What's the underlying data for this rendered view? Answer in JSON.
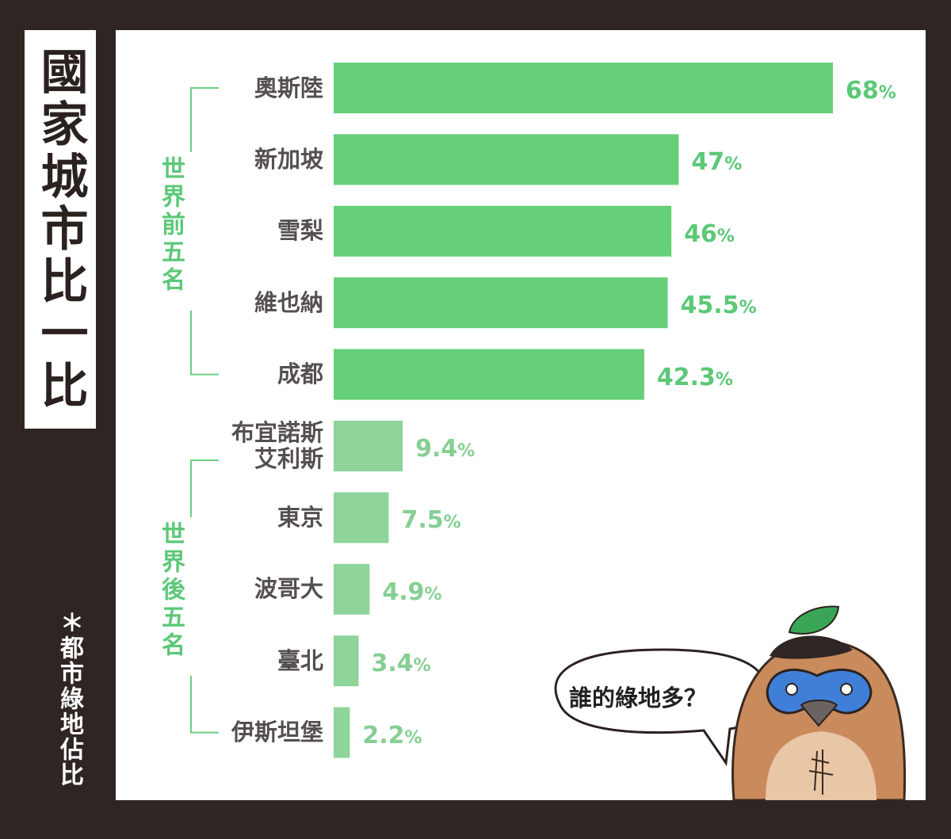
{
  "title": "國家城市比一比",
  "note": "＊都市綠地佔比",
  "speech_bubble": "誰的綠地多？",
  "colors": {
    "top_bar": "#66cf7a",
    "bottom_bar": "#8fd49b",
    "top_text": "#5cc878",
    "bottom_text": "#86cf94",
    "bracket": "#6ccf82"
  },
  "chart_data": {
    "type": "bar",
    "orientation": "horizontal",
    "categories": [
      "奧斯陸",
      "新加坡",
      "雪梨",
      "維也納",
      "成都",
      "布宜諾斯艾利斯",
      "東京",
      "波哥大",
      "臺北",
      "伊斯坦堡"
    ],
    "category_lines": [
      [
        "奧斯陸"
      ],
      [
        "新加坡"
      ],
      [
        "雪梨"
      ],
      [
        "維也納"
      ],
      [
        "成都"
      ],
      [
        "布宜諾斯",
        "艾利斯"
      ],
      [
        "東京"
      ],
      [
        "波哥大"
      ],
      [
        "臺北"
      ],
      [
        "伊斯坦堡"
      ]
    ],
    "values": [
      68,
      47,
      46,
      45.5,
      42.3,
      9.4,
      7.5,
      4.9,
      3.4,
      2.2
    ],
    "value_labels": [
      "68",
      "47",
      "46",
      "45.5",
      "42.3",
      "9.4",
      "7.5",
      "4.9",
      "3.4",
      "2.2"
    ],
    "unit": "%",
    "xlim": [
      0,
      68
    ],
    "grid": false,
    "groups": [
      {
        "label": "世界前五名",
        "start": 0,
        "end": 4
      },
      {
        "label": "世界後五名",
        "start": 5,
        "end": 9
      }
    ]
  }
}
